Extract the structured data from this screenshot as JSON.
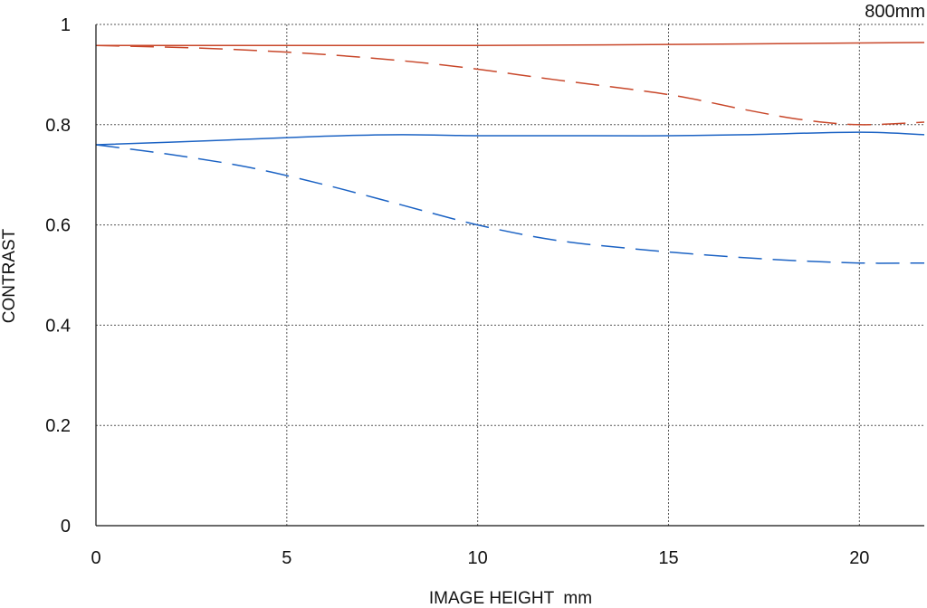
{
  "chart_data": {
    "type": "line",
    "title": "",
    "corner_label": "800mm",
    "xlabel": "IMAGE HEIGHT  mm",
    "ylabel": "CONTRAST",
    "xlim": [
      0,
      21.7
    ],
    "ylim": [
      0,
      1
    ],
    "x_ticks": [
      "0",
      "5",
      "10",
      "15",
      "20"
    ],
    "y_ticks": [
      "0",
      "0.2",
      "0.4",
      "0.6",
      "0.8",
      "1"
    ],
    "grid": true,
    "legend": "none",
    "colors": {
      "red": "#c8472a",
      "blue": "#1c63c4",
      "grid": "#555555",
      "axis": "#111111"
    },
    "series": [
      {
        "color": "red",
        "dash": "solid",
        "x": [
          0,
          3,
          6,
          10,
          15,
          20,
          21.7
        ],
        "y": [
          0.958,
          0.958,
          0.958,
          0.958,
          0.96,
          0.963,
          0.964
        ]
      },
      {
        "color": "red",
        "dash": "dashed",
        "x": [
          0,
          3,
          6,
          9,
          12,
          15,
          17,
          18.5,
          20,
          21.7
        ],
        "y": [
          0.958,
          0.952,
          0.94,
          0.92,
          0.89,
          0.86,
          0.83,
          0.81,
          0.8,
          0.805
        ]
      },
      {
        "color": "blue",
        "dash": "solid",
        "x": [
          0,
          3,
          6,
          8,
          10,
          13,
          15,
          17,
          20,
          21.7
        ],
        "y": [
          0.76,
          0.768,
          0.777,
          0.78,
          0.778,
          0.778,
          0.778,
          0.78,
          0.785,
          0.78
        ]
      },
      {
        "color": "blue",
        "dash": "dashed",
        "x": [
          0,
          2,
          4,
          6,
          8,
          10,
          12,
          14,
          16,
          18,
          20,
          21.7
        ],
        "y": [
          0.76,
          0.74,
          0.715,
          0.68,
          0.64,
          0.6,
          0.57,
          0.553,
          0.54,
          0.53,
          0.524,
          0.524
        ]
      }
    ]
  }
}
